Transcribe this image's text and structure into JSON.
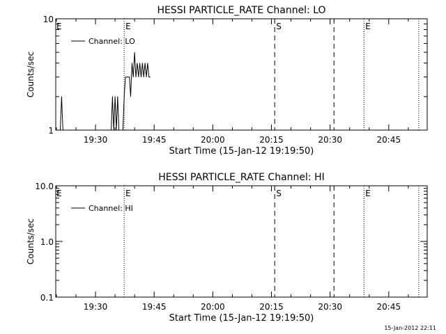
{
  "footer": {
    "timestamp": "15-Jan-2012 22:11"
  },
  "chart_data": [
    {
      "type": "line",
      "title": "HESSI PARTICLE_RATE Channel: LO",
      "xlabel": "Start Time (15-Jan-12 19:19:50)",
      "ylabel": "Counts/sec",
      "y_scale": "log",
      "ylim": [
        1,
        10
      ],
      "xlim": [
        "19:19:50",
        "20:54:50"
      ],
      "x_tick_labels": [
        "19:30",
        "19:45",
        "20:00",
        "20:15",
        "20:30",
        "20:45"
      ],
      "y_tick_labels": [
        "1",
        "10"
      ],
      "legend": {
        "position": "top-left",
        "entries": [
          "Channel: LO"
        ]
      },
      "series": [
        {
          "name": "Channel: LO",
          "x": [
            "19:21:00",
            "19:21:20",
            "19:21:40",
            "19:22:00",
            "19:34:00",
            "19:34:20",
            "19:34:40",
            "19:35:00",
            "19:35:20",
            "19:35:40",
            "19:36:00",
            "19:37:00",
            "19:37:20",
            "19:37:40",
            "19:38:00",
            "19:38:20",
            "19:38:40",
            "19:39:00",
            "19:39:20",
            "19:39:40",
            "19:40:00",
            "19:40:20",
            "19:40:40",
            "19:41:00",
            "19:41:20",
            "19:41:40",
            "19:42:00",
            "19:42:20",
            "19:42:40",
            "19:43:00",
            "19:43:20",
            "19:43:40",
            "19:44:00"
          ],
          "y": [
            1,
            2,
            1,
            1,
            1,
            2,
            1,
            2,
            1,
            2,
            1,
            1,
            2,
            3,
            3,
            3,
            3,
            2,
            4,
            3,
            5,
            3,
            4,
            3,
            4,
            3,
            4,
            3,
            4,
            3,
            4,
            3,
            3
          ]
        }
      ],
      "markers": [
        {
          "time": "19:37:20",
          "style": "dotted",
          "label": "E"
        },
        {
          "time": "20:15:50",
          "style": "dashed",
          "label": "S"
        },
        {
          "time": "20:31:00",
          "style": "dashed",
          "label": ""
        },
        {
          "time": "20:38:40",
          "style": "dotted",
          "label": "E"
        },
        {
          "time": "20:52:40",
          "style": "dotted",
          "label": ""
        }
      ]
    },
    {
      "type": "line",
      "title": "HESSI PARTICLE_RATE Channel: HI",
      "xlabel": "Start Time (15-Jan-12 19:19:50)",
      "ylabel": "Counts/sec",
      "y_scale": "log",
      "ylim": [
        0.1,
        10
      ],
      "xlim": [
        "19:19:50",
        "20:54:50"
      ],
      "x_tick_labels": [
        "19:30",
        "19:45",
        "20:00",
        "20:15",
        "20:30",
        "20:45"
      ],
      "y_tick_labels": [
        "0.1",
        "1.0",
        "10.0"
      ],
      "legend": {
        "position": "top-left",
        "entries": [
          "Channel: HI"
        ]
      },
      "series": [
        {
          "name": "Channel: HI",
          "x": [],
          "y": []
        }
      ],
      "markers": [
        {
          "time": "19:37:20",
          "style": "dotted",
          "label": "E"
        },
        {
          "time": "20:15:50",
          "style": "dashed",
          "label": "S"
        },
        {
          "time": "20:31:00",
          "style": "dashed",
          "label": ""
        },
        {
          "time": "20:38:40",
          "style": "dotted",
          "label": "E"
        },
        {
          "time": "20:52:40",
          "style": "dotted",
          "label": ""
        }
      ]
    }
  ]
}
